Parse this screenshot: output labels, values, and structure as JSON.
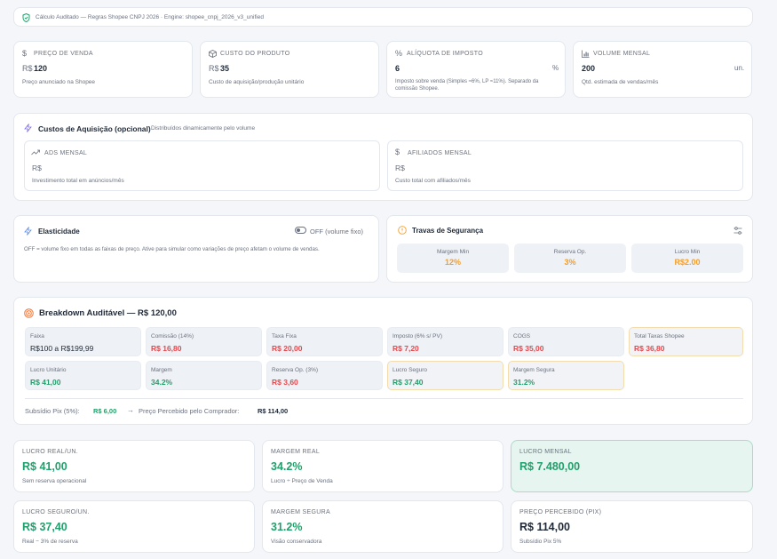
{
  "banner": {
    "text": "Cálculo Auditado — Regras Shopee CNPJ 2026 · Engine: shopee_cnpj_2026_v3_unified"
  },
  "inputs": [
    {
      "label": "PREÇO DE VENDA",
      "prefix": "R$",
      "value": "120",
      "suffix": "",
      "hint": "Preço anunciado na Shopee",
      "icon": "dollar-icon"
    },
    {
      "label": "CUSTO DO PRODUTO",
      "prefix": "R$",
      "value": "35",
      "suffix": "",
      "hint": "Custo de aquisição/produção unitário",
      "icon": "box-icon"
    },
    {
      "label": "ALÍQUOTA DE IMPOSTO",
      "prefix": "",
      "value": "6",
      "suffix": "%",
      "hint": "Imposto sobre venda (Simples ≈6%, LP ≈11%). Separado da comissão Shopee.",
      "icon": "percent-icon"
    },
    {
      "label": "VOLUME MENSAL",
      "prefix": "",
      "value": "200",
      "suffix": "un.",
      "hint": "Qtd. estimada de vendas/mês",
      "icon": "bar-chart-icon"
    }
  ],
  "acquisition": {
    "title": "Custos de Aquisição (opcional)",
    "subtitle": "Distribuídos dinamicamente pelo volume",
    "ads": {
      "label": "ADS MENSAL",
      "prefix": "R$",
      "hint": "Investimento total em anúncios/mês"
    },
    "affiliates": {
      "label": "AFILIADOS MENSAL",
      "prefix": "R$",
      "hint": "Custo total com afiliados/mês"
    }
  },
  "elasticity": {
    "title": "Elasticidade",
    "toggle_label": "OFF (volume fixo)",
    "description": "OFF = volume fixo em todas as faixas de preço. Ative para simular como variações de preço afetam o volume de vendas."
  },
  "safety": {
    "title": "Travas de Segurança",
    "items": [
      {
        "label": "Margem Min",
        "value": "12%"
      },
      {
        "label": "Reserva Op.",
        "value": "3%"
      },
      {
        "label": "Lucro Min",
        "value": "R$2.00"
      }
    ]
  },
  "breakdown": {
    "title": "Breakdown Auditável — R$ 120,00",
    "row1": [
      {
        "label": "Faixa",
        "value": "R$100 a R$199,99"
      },
      {
        "label": "Comissão (14%)",
        "value": "R$ 16,80"
      },
      {
        "label": "Taxa Fixa",
        "value": "R$ 20,00"
      },
      {
        "label": "Imposto (6% s/ PV)",
        "value": "R$ 7,20"
      },
      {
        "label": "COGS",
        "value": "R$ 35,00"
      },
      {
        "label": "Total Taxas Shopee",
        "value": "R$ 36,80"
      }
    ],
    "row2": [
      {
        "label": "Lucro Unitário",
        "value": "R$ 41,00"
      },
      {
        "label": "Margem",
        "value": "34.2%"
      },
      {
        "label": "Reserva Op. (3%)",
        "value": "R$ 3,60"
      },
      {
        "label": "Lucro Seguro",
        "value": "R$ 37,40"
      },
      {
        "label": "Margem Segura",
        "value": "31.2%"
      }
    ],
    "pix_label": "Subsídio Pix (5%):",
    "pix_value": "R$ 6,00",
    "arrow": "→",
    "perceived_label": "Preço Percebido pelo Comprador:",
    "perceived_value": "R$ 114,00"
  },
  "summary": [
    {
      "label": "LUCRO REAL/UN.",
      "value": "R$ 41,00",
      "sub": "Sem reserva operacional"
    },
    {
      "label": "MARGEM REAL",
      "value": "34.2%",
      "sub": "Lucro ÷ Preço de Venda"
    },
    {
      "label": "LUCRO MENSAL",
      "value": "R$ 7.480,00",
      "sub": ""
    },
    {
      "label": "LUCRO SEGURO/UN.",
      "value": "R$ 37,40",
      "sub": "Real − 3% de reserva"
    },
    {
      "label": "MARGEM SEGURA",
      "value": "31.2%",
      "sub": "Visão conservadora"
    },
    {
      "label": "PREÇO PERCEBIDO (PIX)",
      "value": "R$ 114,00",
      "sub": "Subsídio Pix 5%"
    }
  ],
  "colors": {
    "green": "#22a06b",
    "red": "#e5484d",
    "orange": "#f59e2b",
    "accent_bg": "#e6f5ef"
  }
}
